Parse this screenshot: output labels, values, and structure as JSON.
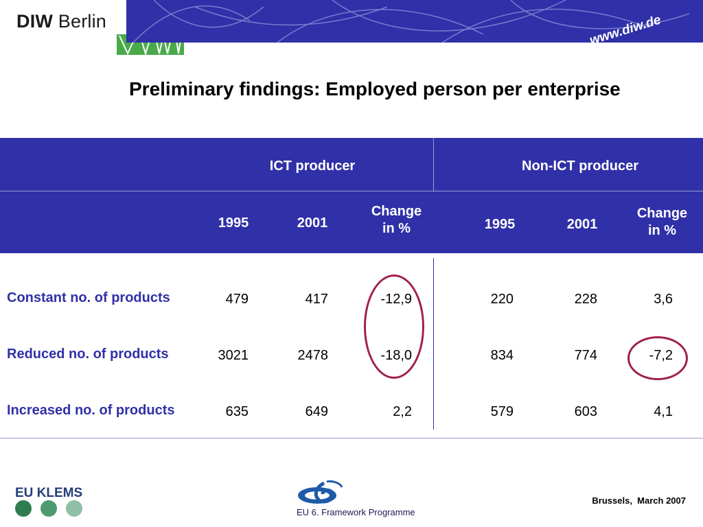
{
  "header": {
    "logo_bold": "DIW",
    "logo_regular": "Berlin",
    "url": "www.diw.de",
    "brand_colors": {
      "band": "#3030a8",
      "green": "#4aaa4a"
    }
  },
  "title": "Preliminary findings: Employed person per enterprise",
  "table": {
    "groups": [
      "ICT producer",
      "Non-ICT producer"
    ],
    "columns": [
      {
        "line1": "1995",
        "line2": ""
      },
      {
        "line1": "2001",
        "line2": ""
      },
      {
        "line1": "Change",
        "line2": "in %"
      },
      {
        "line1": "1995",
        "line2": ""
      },
      {
        "line1": "2001",
        "line2": ""
      },
      {
        "line1": "Change",
        "line2": "in %"
      }
    ],
    "rows": [
      {
        "label": "Constant no. of products",
        "values": [
          "479",
          "417",
          "-12,9",
          "220",
          "228",
          "3,6"
        ]
      },
      {
        "label": "Reduced no. of products",
        "values": [
          "3021",
          "2478",
          "-18,0",
          "834",
          "774",
          "-7,2"
        ]
      },
      {
        "label": "Increased no. of products",
        "values": [
          "635",
          "649",
          "2,2",
          "579",
          "603",
          "4,1"
        ]
      }
    ],
    "highlight_color": "#a0204f"
  },
  "footer": {
    "klems_label": "EU KLEMS",
    "dot_colors": [
      "#2f7d4f",
      "#4f9a72",
      "#8fbfa4"
    ],
    "framework_label": "EU 6. Framework Programme",
    "place_date": "Brussels,  March 2007"
  }
}
